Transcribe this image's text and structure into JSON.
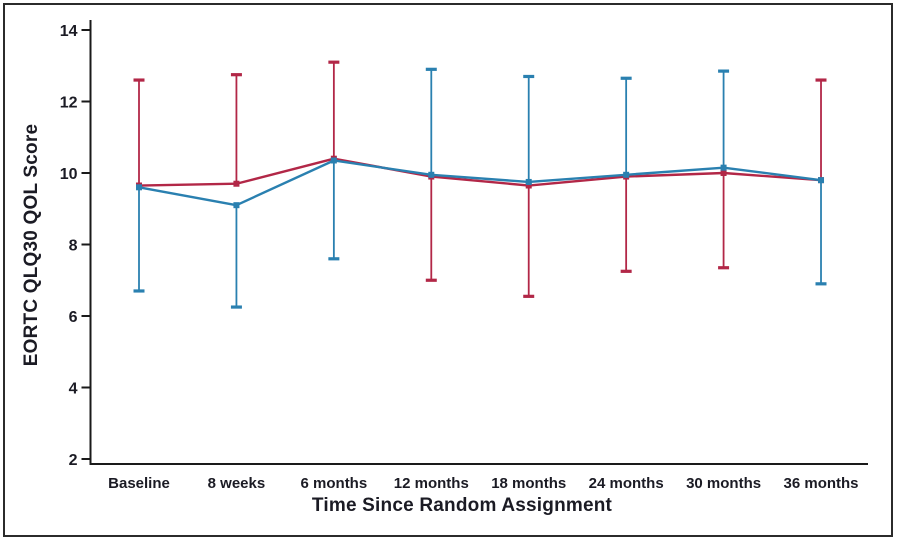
{
  "chart_data": {
    "type": "line",
    "title": "",
    "xlabel": "Time Since Random Assignment",
    "ylabel": "EORTC QLQ30 QOL Score",
    "categories": [
      "Baseline",
      "8 weeks",
      "6 months",
      "12 months",
      "18 months",
      "24 months",
      "30 months",
      "36 months"
    ],
    "ylim": [
      2,
      14
    ],
    "yticks": [
      2,
      4,
      6,
      8,
      10,
      12,
      14
    ],
    "grid": false,
    "legend_position": "none",
    "colors": {
      "axis": "#1a1a1a",
      "text": "#1b1b24",
      "red_series": "#b22747",
      "blue_series": "#2a80b0"
    },
    "series": [
      {
        "name": "red-line",
        "color": "#b22747",
        "values": [
          9.65,
          9.7,
          10.4,
          9.9,
          9.65,
          9.9,
          10.0,
          9.8
        ],
        "error_high": [
          12.6,
          12.75,
          13.1,
          null,
          null,
          null,
          null,
          12.6
        ],
        "error_low": [
          null,
          null,
          null,
          7.0,
          6.55,
          7.25,
          7.35,
          null
        ]
      },
      {
        "name": "blue-line",
        "color": "#2a80b0",
        "values": [
          9.6,
          9.1,
          10.35,
          9.95,
          9.75,
          9.95,
          10.15,
          9.8
        ],
        "error_high": [
          null,
          null,
          null,
          12.9,
          12.7,
          12.65,
          12.85,
          null
        ],
        "error_low": [
          6.7,
          6.25,
          7.6,
          null,
          null,
          null,
          null,
          6.9
        ]
      }
    ]
  }
}
